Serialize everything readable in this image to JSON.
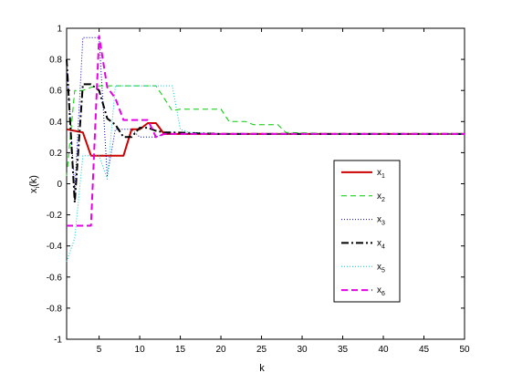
{
  "chart_data": {
    "type": "line",
    "xlabel": "k",
    "ylabel_main": "x",
    "ylabel_sub": "i",
    "ylabel_suffix": "(k)",
    "xlim": [
      1,
      50
    ],
    "ylim": [
      -1,
      1
    ],
    "xticks": [
      5,
      10,
      15,
      20,
      25,
      30,
      35,
      40,
      45,
      50
    ],
    "yticks": [
      -1,
      -0.8,
      -0.6,
      -0.4,
      -0.2,
      0,
      0.2,
      0.4,
      0.6,
      0.8,
      1
    ],
    "xtick_labels": [
      "5",
      "10",
      "15",
      "20",
      "25",
      "30",
      "35",
      "40",
      "45",
      "50"
    ],
    "ytick_labels": [
      "-1",
      "-0.8",
      "-0.6",
      "-0.4",
      "-0.2",
      "0",
      "0.2",
      "0.4",
      "0.6",
      "0.8",
      "1"
    ],
    "grid": false,
    "legend_position": "right-center",
    "series": [
      {
        "name": "x",
        "sub": "1",
        "color": "#cc0000",
        "dash": "solid",
        "width": 2,
        "x": [
          1,
          2,
          3,
          4,
          5,
          6,
          7,
          8,
          9,
          10,
          11,
          12,
          13,
          14,
          20,
          30,
          40,
          50
        ],
        "y": [
          0.35,
          0.34,
          0.33,
          0.18,
          0.18,
          0.18,
          0.18,
          0.18,
          0.35,
          0.35,
          0.39,
          0.39,
          0.32,
          0.32,
          0.32,
          0.32,
          0.32,
          0.32
        ]
      },
      {
        "name": "x",
        "sub": "2",
        "color": "#00cc00",
        "dash": "6,4",
        "width": 1,
        "x": [
          1,
          2,
          3,
          4,
          5,
          6,
          12,
          13,
          14,
          15,
          20,
          21,
          23,
          24,
          27,
          28,
          35,
          50
        ],
        "y": [
          0.05,
          0.6,
          0.6,
          0.62,
          0.63,
          0.63,
          0.63,
          0.55,
          0.47,
          0.48,
          0.48,
          0.4,
          0.4,
          0.38,
          0.38,
          0.33,
          0.32,
          0.32
        ]
      },
      {
        "name": "x",
        "sub": "3",
        "color": "#0000cc",
        "dash": "1,2",
        "width": 1,
        "x": [
          1,
          2,
          3,
          4,
          5,
          6,
          7,
          8,
          9,
          10,
          11,
          12,
          13,
          20,
          50
        ],
        "y": [
          0.8,
          -0.05,
          0.94,
          0.94,
          0.94,
          0.05,
          0.35,
          0.35,
          0.35,
          0.3,
          0.3,
          0.3,
          0.32,
          0.32,
          0.32
        ]
      },
      {
        "name": "x",
        "sub": "4",
        "color": "#000000",
        "dash": "8,3,2,3",
        "width": 2,
        "x": [
          1,
          2,
          3,
          4,
          5,
          6,
          7,
          8,
          9,
          10,
          11,
          12,
          13,
          14,
          20,
          50
        ],
        "y": [
          0.8,
          -0.12,
          0.64,
          0.64,
          0.6,
          0.42,
          0.38,
          0.3,
          0.3,
          0.36,
          0.36,
          0.34,
          0.33,
          0.33,
          0.32,
          0.32
        ]
      },
      {
        "name": "x",
        "sub": "5",
        "color": "#00cccc",
        "dash": "1,2",
        "width": 1,
        "x": [
          1,
          2,
          3,
          4,
          5,
          6,
          7,
          8,
          14,
          15,
          16,
          20,
          50
        ],
        "y": [
          -0.5,
          -0.35,
          0.18,
          0.18,
          0.18,
          0.03,
          0.63,
          0.63,
          0.63,
          0.35,
          0.33,
          0.32,
          0.32
        ]
      },
      {
        "name": "x",
        "sub": "6",
        "color": "#e600e6",
        "dash": "7,4",
        "width": 2,
        "x": [
          1,
          2,
          3,
          4,
          5,
          6,
          7,
          8,
          9,
          10,
          11,
          12,
          13,
          20,
          50
        ],
        "y": [
          -0.27,
          -0.27,
          -0.27,
          -0.27,
          0.95,
          0.62,
          0.55,
          0.41,
          0.41,
          0.41,
          0.41,
          0.3,
          0.32,
          0.32,
          0.32
        ]
      }
    ]
  }
}
